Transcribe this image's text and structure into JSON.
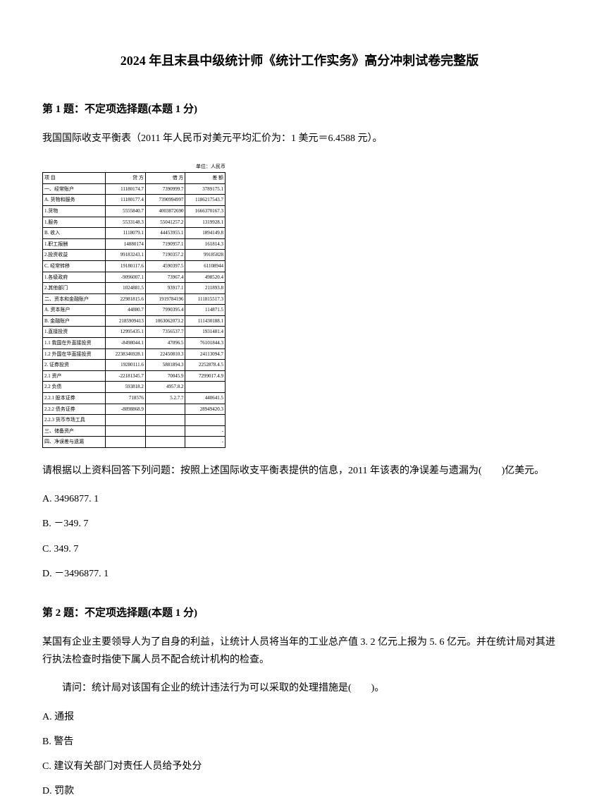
{
  "title": "2024 年且末县中级统计师《统计工作实务》高分冲刺试卷完整版",
  "q1": {
    "header": "第 1 题：不定项选择题(本题 1 分)",
    "text1": "我国国际收支平衡表（2011 年人民币对美元平均汇价为：1 美元＝6.4588 元）。",
    "table_unit": "单位：人民币",
    "table": {
      "rows": [
        [
          "项 目",
          "贷 方",
          "借 方",
          "差 额"
        ],
        [
          "一、经常账户",
          "11180174.7",
          "7390999.7",
          "3789175.1"
        ],
        [
          "A. 货物和服务",
          "11180177.4",
          "7390994997",
          "1186217543.7"
        ],
        [
          "1.货物",
          "5555840.7",
          "4003872690",
          "1666370167.3"
        ],
        [
          "1.服务",
          "5533148.3",
          "55041257.2",
          "1319928.1"
        ],
        [
          "B. 收入",
          "1118079.1",
          "44453955.1",
          "1894149.8"
        ],
        [
          "1.职工报酬",
          "14880174",
          "7190957.1",
          "161814.3"
        ],
        [
          "2.投资收益",
          "99183243.1",
          "7190357.2",
          "99185828"
        ],
        [
          "C. 经常转移",
          "19180117.6",
          "4590397.5",
          "61108944"
        ],
        [
          "1.各级政府",
          "-9096007.1",
          "73967.4",
          "498520.4"
        ],
        [
          "2.其他部门",
          "1024881.5",
          "93917.1",
          "211893.8"
        ],
        [
          "二、资本和金融账户",
          "22981815.6",
          "1919784196",
          "111815517.3"
        ],
        [
          "A. 资本账户",
          "44880.7",
          "7990395.4",
          "114871.5"
        ],
        [
          "B. 金融账户",
          "2185909413",
          "1063062073.2",
          "111430188.1"
        ],
        [
          "1.直接投资",
          "12995435.1",
          "7356537.7",
          "1931481.4"
        ],
        [
          "1.1 我国在外直接投资",
          "-8498044.1",
          "47096.5",
          "76101844.3"
        ],
        [
          "1.2 外国在华直接投资",
          "2238346928.1",
          "22450810.3",
          "24113094.7"
        ],
        [
          "2. 证券投资",
          "19280111.6",
          "5881894.3",
          "2252878.4.5"
        ],
        [
          "2.1 资产",
          "-22181345.7",
          "70045.9",
          "7299017.4.9"
        ],
        [
          "2.2 负债",
          "593818.2",
          "4957.8.2",
          ""
        ],
        [
          "2.2.1 股本证券",
          "718576",
          "5.2.7.7",
          "440641.5"
        ],
        [
          "2.2.2 债务证券",
          "-8898868.9",
          "",
          "28949420.3"
        ],
        [
          "2.2.3 货币市场工具",
          "",
          "",
          ""
        ],
        [
          "三、储备资产",
          "",
          "",
          "-"
        ],
        [
          "四、净误差与遗漏",
          "",
          "",
          "-"
        ]
      ]
    },
    "text2": "请根据以上资料回答下列问题：按照上述国际收支平衡表提供的信息，2011 年该表的净误差与遗漏为(　　)亿美元。",
    "options": {
      "a": "A. 3496877. 1",
      "b": "B. －349. 7",
      "c": "C. 349. 7",
      "d": "D. －3496877. 1"
    }
  },
  "q2": {
    "header": "第 2 题：不定项选择题(本题 1 分)",
    "text1": "某国有企业主要领导人为了自身的利益，让统计人员将当年的工业总产值 3. 2 亿元上报为 5. 6 亿元。并在统计局对其进行执法检查时指使下属人员不配合统计机构的检查。",
    "text2": "请问：统计局对该国有企业的统计违法行为可以采取的处理措施是(　　)。",
    "options": {
      "a": "A. 通报",
      "b": "B. 警告",
      "c": "C. 建议有关部门对责任人员给予处分",
      "d": "D. 罚款"
    }
  }
}
